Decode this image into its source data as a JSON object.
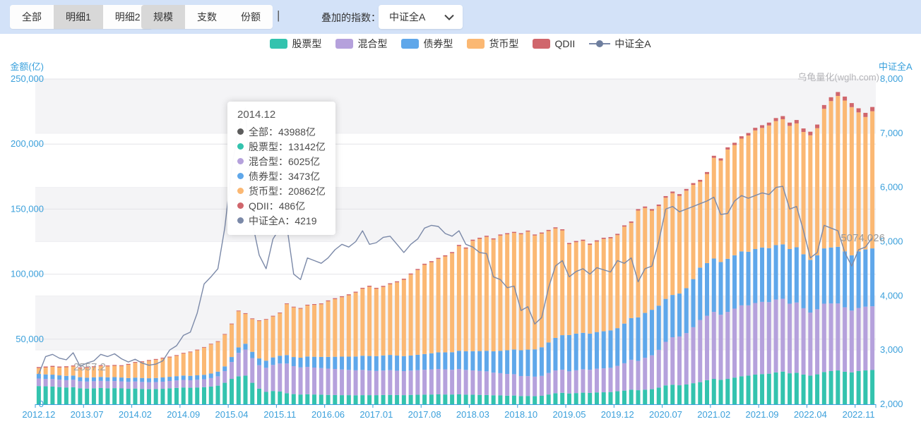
{
  "toolbar": {
    "group1": [
      {
        "label": "全部",
        "selected": false
      },
      {
        "label": "明细1",
        "selected": true
      },
      {
        "label": "明细2",
        "selected": false
      }
    ],
    "group2": [
      {
        "label": "规模",
        "selected": true
      },
      {
        "label": "支数",
        "selected": false
      },
      {
        "label": "份额",
        "selected": false
      }
    ],
    "separator": "|",
    "overlay_label": "叠加的指数：",
    "index_select": {
      "value": "中证全A"
    }
  },
  "watermark": "乌龟量化(wglh.com)",
  "axes": {
    "left_title": "金额(亿)",
    "right_title": "中证全A",
    "left_ticks": [
      "250,000",
      "200,000",
      "150,000",
      "100,000",
      "50,000",
      "0"
    ],
    "right_ticks": [
      "8,000",
      "7,000",
      "6,000",
      "5,000",
      "4,000",
      "3,000",
      "2,000"
    ]
  },
  "tooltip": {
    "title": "2014.12",
    "rows": [
      {
        "label": "全部",
        "value": "43988亿",
        "color": "#5c5c5c"
      },
      {
        "label": "股票型",
        "value": "13142亿",
        "color": "#33c3ae"
      },
      {
        "label": "混合型",
        "value": "6025亿",
        "color": "#b5a1dc"
      },
      {
        "label": "债券型",
        "value": "3473亿",
        "color": "#5fa7ea"
      },
      {
        "label": "货币型",
        "value": "20862亿",
        "color": "#fbb873"
      },
      {
        "label": "QDII",
        "value": "486亿",
        "color": "#d0666c"
      },
      {
        "label": "中证全A",
        "value": "4219",
        "color": "#7b89a8"
      }
    ]
  },
  "point_labels": {
    "start": "2557.2",
    "end": "5074.026"
  },
  "chart_data": {
    "type": "combo: stacked monthly bars (left axis 金额(亿)) + index line (right axis 中证全A)",
    "x_start": "2012.12",
    "x_end": "2023.01",
    "n_points": 122,
    "x_tick_labels": [
      "2012.12",
      "2013.07",
      "2014.02",
      "2014.09",
      "2015.04",
      "2015.11",
      "2016.06",
      "2017.01",
      "2017.08",
      "2018.03",
      "2018.10",
      "2019.05",
      "2019.12",
      "2020.07",
      "2021.02",
      "2021.09",
      "2022.04",
      "2022.11"
    ],
    "x_tick_interval_months": 7,
    "y_left": {
      "label": "金额(亿)",
      "min": 0,
      "max": 250000
    },
    "y_right": {
      "label": "中证全A",
      "min": 2000,
      "max": 8000
    },
    "grid": "horizontal gridlines + alternating split bands",
    "legend_position": "top-center",
    "series": [
      {
        "name": "股票型",
        "type": "bar",
        "stack": true,
        "color": "#33c3ae",
        "values": [
          14000,
          13800,
          13600,
          13200,
          12900,
          13100,
          12300,
          12100,
          12300,
          12500,
          12300,
          12400,
          12200,
          11900,
          12100,
          11800,
          11600,
          11700,
          11900,
          12300,
          12600,
          12900,
          12700,
          12900,
          13142,
          13600,
          14300,
          16500,
          19500,
          21500,
          22000,
          16500,
          12000,
          9500,
          10200,
          9800,
          8500,
          7800,
          7500,
          7700,
          7500,
          7400,
          7200,
          7100,
          7000,
          7000,
          6900,
          7000,
          7000,
          7000,
          7100,
          7200,
          7100,
          7000,
          7200,
          7300,
          7400,
          7500,
          7600,
          7500,
          7500,
          7600,
          7400,
          7300,
          7200,
          7100,
          6900,
          6800,
          6600,
          6700,
          6300,
          6400,
          6200,
          6500,
          7500,
          8500,
          8800,
          8300,
          8600,
          8900,
          8700,
          9100,
          9200,
          9400,
          10000,
          10500,
          11200,
          10800,
          11200,
          11600,
          12800,
          14500,
          15000,
          14600,
          15200,
          16200,
          17000,
          18500,
          19500,
          18800,
          19500,
          20500,
          21500,
          22000,
          22800,
          23200,
          23500,
          24500,
          25100,
          23800,
          24200,
          22800,
          22000,
          23000,
          24800,
          25500,
          26000,
          25000,
          24500,
          25500,
          26000,
          26300
        ]
      },
      {
        "name": "混合型",
        "type": "bar",
        "stack": true,
        "color": "#b5a1dc",
        "values": [
          5800,
          5700,
          5750,
          5650,
          5600,
          5700,
          5400,
          5350,
          5400,
          5450,
          5400,
          5450,
          5400,
          5300,
          5400,
          5350,
          5300,
          5350,
          5450,
          5600,
          5700,
          5800,
          5750,
          5900,
          6025,
          6500,
          7200,
          9000,
          13000,
          18000,
          20000,
          19000,
          18000,
          18500,
          20000,
          21500,
          22800,
          21500,
          20800,
          21000,
          20700,
          20400,
          20200,
          20000,
          19700,
          19400,
          19200,
          19400,
          18900,
          18600,
          18800,
          19000,
          18700,
          18500,
          18700,
          18900,
          19100,
          19300,
          19500,
          19300,
          19000,
          19500,
          19000,
          18700,
          18400,
          18200,
          17400,
          17100,
          16700,
          16400,
          15400,
          15200,
          15000,
          15300,
          16500,
          17500,
          17800,
          17000,
          17500,
          18000,
          17800,
          18200,
          18400,
          18600,
          19500,
          21000,
          23000,
          22500,
          24500,
          26000,
          29000,
          33500,
          36500,
          37500,
          39500,
          43000,
          47800,
          49500,
          51500,
          50000,
          51500,
          53000,
          54500,
          54000,
          55000,
          55500,
          55000,
          56000,
          56000,
          53500,
          54000,
          51000,
          48500,
          50000,
          52500,
          52000,
          51500,
          49500,
          47500,
          48500,
          49000,
          49000
        ]
      },
      {
        "name": "债券型",
        "type": "bar",
        "stack": true,
        "color": "#5fa7ea",
        "values": [
          3500,
          3450,
          3400,
          3350,
          3300,
          3250,
          3100,
          3000,
          3000,
          3050,
          3000,
          3000,
          2950,
          2950,
          3000,
          3050,
          3100,
          3150,
          3250,
          3200,
          3300,
          3350,
          3400,
          3430,
          3473,
          3500,
          3550,
          3600,
          3800,
          4200,
          4500,
          4800,
          5200,
          5500,
          5800,
          6000,
          6500,
          7000,
          7500,
          8000,
          8300,
          8600,
          9000,
          9400,
          9900,
          10200,
          10600,
          10900,
          11200,
          11400,
          11600,
          11700,
          11600,
          11500,
          11600,
          11800,
          12100,
          12400,
          12800,
          13100,
          13500,
          14000,
          14400,
          14800,
          15300,
          15800,
          16400,
          17200,
          18200,
          19000,
          19800,
          20400,
          21000,
          22000,
          23500,
          25000,
          26500,
          27900,
          28200,
          28000,
          27800,
          28200,
          28500,
          28800,
          29000,
          30500,
          32000,
          33500,
          34500,
          35000,
          34000,
          33000,
          32500,
          33000,
          34500,
          37000,
          40200,
          40500,
          41000,
          40500,
          40800,
          41000,
          41500,
          41200,
          41500,
          41800,
          41500,
          41800,
          41800,
          42000,
          42500,
          41500,
          40500,
          41500,
          42500,
          43000,
          43500,
          43000,
          42500,
          43500,
          44000,
          44500
        ]
      },
      {
        "name": "货币型",
        "type": "bar",
        "stack": true,
        "color": "#fbb873",
        "values": [
          4500,
          5270,
          5980,
          6040,
          6650,
          7010,
          6780,
          7450,
          7810,
          8320,
          8430,
          8690,
          8800,
          10210,
          11370,
          12180,
          13390,
          14000,
          14610,
          14920,
          15630,
          16890,
          18110,
          19260,
          20862,
          22410,
          22960,
          24400,
          25180,
          27760,
          22940,
          25160,
          28780,
          31490,
          31490,
          32680,
          39170,
          38140,
          37620,
          39200,
          39880,
          40460,
          42740,
          44320,
          45700,
          47190,
          49080,
          51470,
          53250,
          51740,
          52730,
          54320,
          56310,
          58700,
          62190,
          65180,
          68570,
          69960,
          71750,
          73740,
          76130,
          80520,
          78830,
          84840,
          86250,
          87560,
          85970,
          88580,
          89190,
          89600,
          89210,
          90720,
          87520,
          87400,
          85680,
          84160,
          80540,
          69920,
          70300,
          70690,
          68280,
          69570,
          70960,
          70750,
          71540,
          74500,
          73250,
          82100,
          80680,
          76250,
          76520,
          77780,
          78240,
          75100,
          74960,
          72420,
          66080,
          68500,
          77400,
          78050,
          84000,
          84750,
          86700,
          89400,
          91200,
          91900,
          94300,
          95400,
          96200,
          94700,
          95200,
          94000,
          95750,
          97700,
          107300,
          112550,
          116000,
          115950,
          113900,
          106850,
          101800,
          105450
        ]
      },
      {
        "name": "QDII",
        "type": "bar",
        "stack": true,
        "color": "#d0666c",
        "values": [
          800,
          780,
          770,
          760,
          750,
          740,
          720,
          700,
          690,
          680,
          670,
          660,
          650,
          640,
          630,
          620,
          610,
          600,
          590,
          580,
          570,
          560,
          540,
          510,
          486,
          490,
          495,
          500,
          520,
          540,
          560,
          540,
          520,
          510,
          515,
          520,
          530,
          560,
          580,
          600,
          620,
          640,
          660,
          680,
          700,
          710,
          720,
          730,
          750,
          760,
          770,
          780,
          790,
          800,
          810,
          820,
          830,
          840,
          850,
          860,
          870,
          880,
          870,
          860,
          850,
          840,
          830,
          820,
          810,
          800,
          790,
          785,
          780,
          800,
          820,
          840,
          860,
          880,
          900,
          910,
          920,
          930,
          940,
          950,
          960,
          1000,
          1050,
          1100,
          1120,
          1150,
          1180,
          1220,
          1260,
          1300,
          1340,
          1380,
          1420,
          1500,
          1600,
          1650,
          1700,
          1750,
          1800,
          1900,
          2000,
          2100,
          2200,
          2300,
          2400,
          2500,
          2600,
          2700,
          2750,
          2800,
          2900,
          2950,
          3000,
          3050,
          3100,
          3150,
          3200,
          3250
        ]
      },
      {
        "name": "中证全A",
        "type": "line",
        "axis": "right",
        "color": "#7b89a8",
        "values": [
          2557.2,
          2880,
          2920,
          2850,
          2820,
          2950,
          2700,
          2760,
          2800,
          2920,
          2880,
          2930,
          2840,
          2780,
          2830,
          2760,
          2720,
          2740,
          2800,
          3000,
          3080,
          3270,
          3330,
          3680,
          4219,
          4350,
          4500,
          5250,
          6350,
          7100,
          7463,
          5350,
          4750,
          4500,
          5050,
          5250,
          5300,
          4400,
          4300,
          4700,
          4650,
          4600,
          4700,
          4850,
          4950,
          4900,
          5000,
          5200,
          4950,
          4980,
          5080,
          5100,
          4950,
          4800,
          4950,
          5050,
          5250,
          5300,
          5280,
          5150,
          5100,
          5200,
          4950,
          4900,
          4800,
          4780,
          4350,
          4300,
          4150,
          4180,
          3730,
          3800,
          3480,
          3600,
          4150,
          4550,
          4650,
          4350,
          4450,
          4500,
          4400,
          4520,
          4480,
          4440,
          4650,
          4600,
          4700,
          4260,
          4500,
          4550,
          5000,
          5600,
          5650,
          5550,
          5600,
          5650,
          5700,
          5750,
          5820,
          5500,
          5520,
          5750,
          5850,
          5800,
          5850,
          5900,
          5870,
          6000,
          6020,
          5600,
          5650,
          5200,
          4700,
          4800,
          5300,
          5250,
          5200,
          4800,
          4550,
          4850,
          4900,
          5074.026
        ]
      }
    ]
  }
}
